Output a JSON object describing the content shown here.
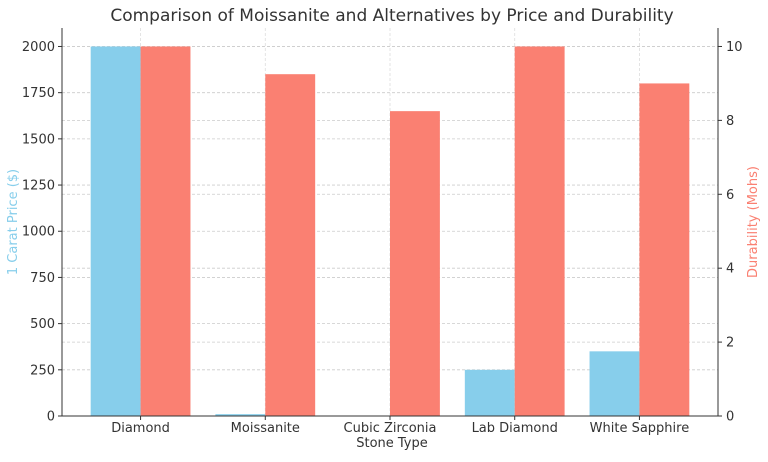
{
  "chart_data": {
    "type": "bar",
    "title": "Comparison of Moissanite and Alternatives by Price and Durability",
    "xlabel": "Stone Type",
    "categories": [
      "Diamond",
      "Moissanite",
      "Cubic Zirconia",
      "Lab Diamond",
      "White Sapphire"
    ],
    "series": [
      {
        "name": "1 Carat Price ($)",
        "axis": "left",
        "color": "#87CEEB",
        "values": [
          2000,
          10,
          1,
          250,
          350
        ]
      },
      {
        "name": "Durability (Mohs)",
        "axis": "right",
        "color": "#FA8072",
        "values": [
          10,
          9.25,
          8.25,
          10,
          9
        ]
      }
    ],
    "ylabel_left": "1 Carat Price ($)",
    "ylabel_right": "Durability (Mohs)",
    "ylim_left": [
      0,
      2100
    ],
    "ylim_right": [
      0,
      10.5
    ],
    "yticks_left": [
      0,
      250,
      500,
      750,
      1000,
      1250,
      1500,
      1750,
      2000
    ],
    "yticks_right": [
      0,
      2,
      4,
      6,
      8,
      10
    ],
    "grid": true
  }
}
